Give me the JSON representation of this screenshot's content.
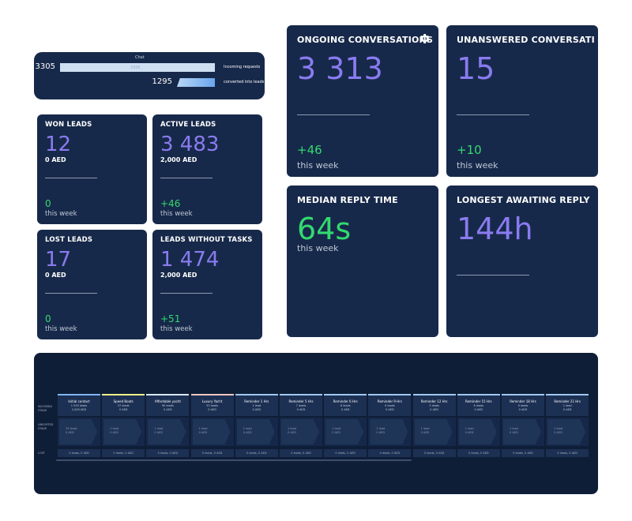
{
  "funnel": {
    "caption": "Chat",
    "rows": [
      {
        "number": "3305",
        "bar_text": "3305",
        "label": "Incoming requests",
        "fill": 1.0,
        "color": "#cfdff2"
      },
      {
        "number": "1295",
        "bar_text": "",
        "label": "converted into leads",
        "fill": 0.39,
        "color": "#7fb6f2"
      }
    ]
  },
  "lead_cards": [
    {
      "title": "WON LEADS",
      "value": "12",
      "amount": "0 AED",
      "delta": "0",
      "period": "this week"
    },
    {
      "title": "ACTIVE LEADS",
      "value": "3 483",
      "amount": "2,000 AED",
      "delta": "+46",
      "period": "this week"
    },
    {
      "title": "LOST LEADS",
      "value": "17",
      "amount": "0 AED",
      "delta": "0",
      "period": "this week"
    },
    {
      "title": "LEADS WITHOUT TASKS",
      "value": "1 474",
      "amount": "2,000 AED",
      "delta": "+51",
      "period": "this week"
    }
  ],
  "chat_cards": [
    {
      "title": "ONGOING CONVERSATIONS",
      "value": "3 313",
      "delta": "+46",
      "period": "this week",
      "icon": "gear-icon"
    },
    {
      "title": "UNANSWERED CONVERSATIO",
      "value": "15",
      "delta": "+10",
      "period": "this week"
    },
    {
      "title": "MEDIAN REPLY TIME",
      "value": "64s",
      "period": "this week"
    },
    {
      "title": "LONGEST AWAITING REPLY",
      "value": "144h"
    }
  ],
  "pipeline": {
    "row_labels": {
      "incoming": "INCOMING STAGE",
      "unsorted": "UNSORTED STAGE",
      "lost": "LOST"
    },
    "stages": [
      {
        "name": "Initial contact",
        "leads": "1 019 leads",
        "amount": "2,000 AED",
        "color": "#7fb6f2",
        "chev_main": "39 leads",
        "chev_sub": "0 AED",
        "lost": "0 leads, 0 AED"
      },
      {
        "name": "Speed Boats",
        "leads": "37 leads",
        "amount": "0 AED",
        "color": "#f2f08a",
        "chev_main": "1 lead",
        "chev_sub": "0 AED",
        "lost": "0 leads, 0 AED"
      },
      {
        "name": "Affordable yacht",
        "leads": "90 leads",
        "amount": "0 AED",
        "color": "#d7e7f7",
        "chev_main": "1 lead",
        "chev_sub": "0 AED",
        "lost": "0 leads, 0 AED"
      },
      {
        "name": "Luxury Yacht",
        "leads": "53 leads",
        "amount": "0 AED",
        "color": "#f2c7c0",
        "chev_main": "1 lead",
        "chev_sub": "0 AED",
        "lost": "0 leads, 0 AED"
      },
      {
        "name": "Reminder 1 Hrs",
        "leads": "1 lead",
        "amount": "0 AED",
        "color": "#9fc8ef",
        "chev_main": "1 lead",
        "chev_sub": "0 AED",
        "lost": "0 leads, 0 AED"
      },
      {
        "name": "Reminder 5 Hrs",
        "leads": "7 leads",
        "amount": "0 AED",
        "color": "#9fc8ef",
        "chev_main": "1 lead",
        "chev_sub": "0 AED",
        "lost": "0 leads, 0 AED"
      },
      {
        "name": "Reminder 6 Hrs",
        "leads": "6 leads",
        "amount": "0 AED",
        "color": "#9fc8ef",
        "chev_main": "1 lead",
        "chev_sub": "0 AED",
        "lost": "0 leads, 0 AED"
      },
      {
        "name": "Reminder 9 Hrs",
        "leads": "0 leads",
        "amount": "0 AED",
        "color": "#9fc8ef",
        "chev_main": "1 lead",
        "chev_sub": "0 AED",
        "lost": "0 leads, 0 AED"
      },
      {
        "name": "Reminder 12 Hrs",
        "leads": "3 leads",
        "amount": "0 AED",
        "color": "#9fc8ef",
        "chev_main": "1 lead",
        "chev_sub": "0 AED",
        "lost": "0 leads, 0 AED"
      },
      {
        "name": "Reminder 15 Hrs",
        "leads": "6 leads",
        "amount": "0 AED",
        "color": "#9fc8ef",
        "chev_main": "1 lead",
        "chev_sub": "0 AED",
        "lost": "0 leads, 0 AED"
      },
      {
        "name": "Reminder 18 Hrs",
        "leads": "9 leads",
        "amount": "0 AED",
        "color": "#9fc8ef",
        "chev_main": "1 lead",
        "chev_sub": "0 AED",
        "lost": "0 leads, 0 AED"
      },
      {
        "name": "Reminder 21 Hrs",
        "leads": "1 lead",
        "amount": "0 AED",
        "color": "#9fc8ef",
        "chev_main": "1 lead",
        "chev_sub": "0 AED",
        "lost": "0 leads, 0 AED"
      }
    ]
  },
  "colors": {
    "card_bg": "#17294a",
    "value_purple": "#8a7bf0",
    "delta_green": "#33d96f",
    "page_bg": "#ffffff"
  }
}
